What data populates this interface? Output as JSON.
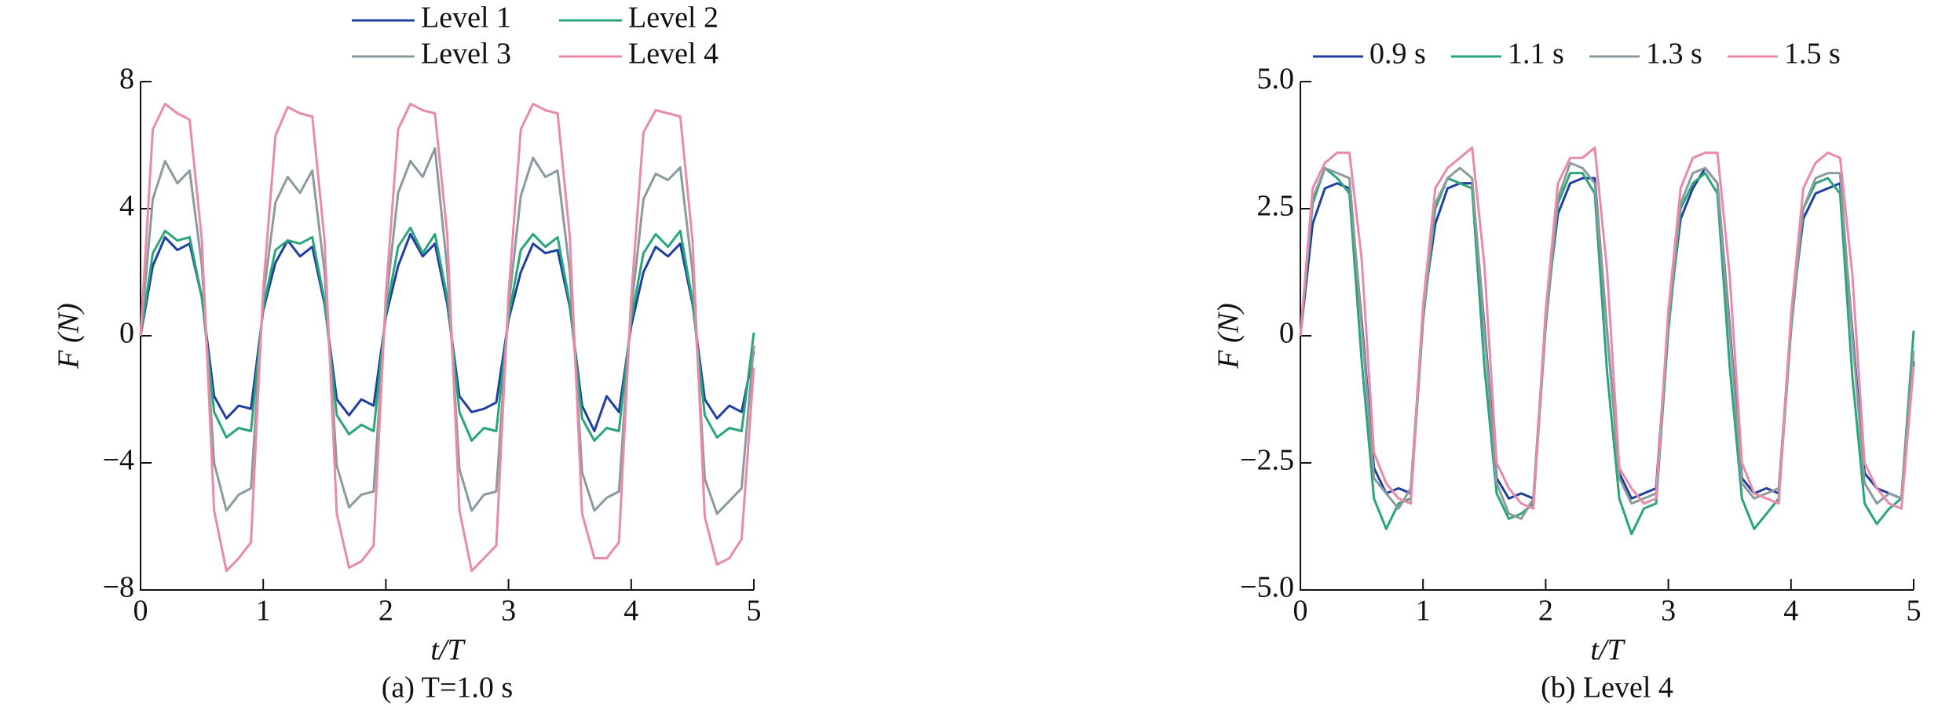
{
  "chart_data": [
    {
      "type": "line",
      "caption": "(a) T=1.0 s",
      "xlabel": "t/T",
      "ylabel": "F (N)",
      "xlim": [
        0,
        5
      ],
      "xticks": [
        0,
        1,
        2,
        3,
        4,
        5
      ],
      "ylim": [
        -8,
        8
      ],
      "yticks": [
        {
          "value": -8,
          "label": "−8"
        },
        {
          "value": -4,
          "label": "−4"
        },
        0,
        4,
        8
      ],
      "legend_columns": 2,
      "x": [
        0,
        0.1,
        0.2,
        0.3,
        0.4,
        0.5,
        0.6,
        0.7,
        0.8,
        0.9,
        1,
        1.1,
        1.2,
        1.3,
        1.4,
        1.5,
        1.6,
        1.7,
        1.8,
        1.9,
        2,
        2.1,
        2.2,
        2.3,
        2.4,
        2.5,
        2.6,
        2.7,
        2.8,
        2.9,
        3,
        3.1,
        3.2,
        3.3,
        3.4,
        3.5,
        3.6,
        3.7,
        3.8,
        3.9,
        4,
        4.1,
        4.2,
        4.3,
        4.4,
        4.5,
        4.6,
        4.7,
        4.8,
        4.9,
        5
      ],
      "series": [
        {
          "name": "Level 1",
          "color": "#1f3fa0",
          "values": [
            0,
            2.2,
            3.1,
            2.7,
            2.9,
            1.2,
            -1.9,
            -2.6,
            -2.2,
            -2.3,
            0.8,
            2.3,
            3.0,
            2.5,
            2.8,
            1.0,
            -2.0,
            -2.5,
            -2.0,
            -2.2,
            0.6,
            2.2,
            3.2,
            2.5,
            2.9,
            1.0,
            -1.9,
            -2.4,
            -2.3,
            -2.1,
            0.5,
            2.0,
            2.9,
            2.6,
            2.7,
            0.9,
            -2.2,
            -3.0,
            -1.9,
            -2.4,
            0.3,
            2.0,
            2.8,
            2.5,
            2.9,
            1.0,
            -2.0,
            -2.6,
            -2.2,
            -2.4,
            -0.5
          ]
        },
        {
          "name": "Level 2",
          "color": "#2aa57a",
          "values": [
            0,
            2.6,
            3.3,
            3.0,
            3.1,
            1.2,
            -2.4,
            -3.2,
            -2.9,
            -3.0,
            0.9,
            2.7,
            3.0,
            2.9,
            3.1,
            1.1,
            -2.5,
            -3.1,
            -2.8,
            -3.0,
            0.7,
            2.8,
            3.4,
            2.6,
            3.2,
            1.2,
            -2.4,
            -3.3,
            -2.9,
            -3.0,
            0.6,
            2.7,
            3.2,
            2.8,
            3.1,
            1.0,
            -2.6,
            -3.3,
            -2.9,
            -3.0,
            0.5,
            2.6,
            3.2,
            2.8,
            3.3,
            1.1,
            -2.5,
            -3.2,
            -2.9,
            -3.0,
            0.1
          ]
        },
        {
          "name": "Level 3",
          "color": "#8a9a9e",
          "values": [
            0,
            4.3,
            5.5,
            4.8,
            5.2,
            2.2,
            -4.0,
            -5.5,
            -5.0,
            -4.8,
            1.2,
            4.2,
            5.0,
            4.5,
            5.2,
            2.0,
            -4.1,
            -5.4,
            -5.0,
            -4.9,
            1.0,
            4.5,
            5.5,
            5.0,
            5.9,
            2.1,
            -4.2,
            -5.5,
            -5.0,
            -4.9,
            0.9,
            4.4,
            5.6,
            5.0,
            5.2,
            2.0,
            -4.3,
            -5.5,
            -5.1,
            -4.9,
            0.8,
            4.3,
            5.1,
            4.9,
            5.3,
            2.0,
            -4.5,
            -5.6,
            -5.2,
            -4.8,
            -0.3
          ]
        },
        {
          "name": "Level 4",
          "color": "#e88aa8",
          "values": [
            0,
            6.5,
            7.3,
            7.0,
            6.8,
            3.0,
            -5.5,
            -7.4,
            -7.0,
            -6.5,
            1.5,
            6.3,
            7.2,
            7.0,
            6.9,
            3.0,
            -5.6,
            -7.3,
            -7.1,
            -6.6,
            1.3,
            6.5,
            7.3,
            7.1,
            7.0,
            3.2,
            -5.5,
            -7.4,
            -7.0,
            -6.6,
            1.3,
            6.5,
            7.3,
            7.1,
            7.0,
            3.1,
            -5.6,
            -7.0,
            -7.0,
            -6.5,
            1.2,
            6.4,
            7.1,
            7.0,
            6.9,
            3.0,
            -5.7,
            -7.2,
            -7.0,
            -6.4,
            -1.0
          ]
        }
      ]
    },
    {
      "type": "line",
      "caption": "(b) Level 4",
      "xlabel": "t/T",
      "ylabel": "F (N)",
      "xlim": [
        0,
        5
      ],
      "xticks": [
        0,
        1,
        2,
        3,
        4,
        5
      ],
      "ylim": [
        -5,
        5
      ],
      "yticks": [
        {
          "value": -5,
          "label": "−5.0"
        },
        {
          "value": -2.5,
          "label": "−2.5"
        },
        0,
        2.5,
        {
          "value": 5,
          "label": "5.0"
        }
      ],
      "legend_columns": 4,
      "x": [
        0,
        0.1,
        0.2,
        0.3,
        0.4,
        0.5,
        0.6,
        0.7,
        0.8,
        0.9,
        1,
        1.1,
        1.2,
        1.3,
        1.4,
        1.5,
        1.6,
        1.7,
        1.8,
        1.9,
        2,
        2.1,
        2.2,
        2.3,
        2.4,
        2.5,
        2.6,
        2.7,
        2.8,
        2.9,
        3,
        3.1,
        3.2,
        3.3,
        3.4,
        3.5,
        3.6,
        3.7,
        3.8,
        3.9,
        4,
        4.1,
        4.2,
        4.3,
        4.4,
        4.5,
        4.6,
        4.7,
        4.8,
        4.9,
        5
      ],
      "series": [
        {
          "name": "0.9 s",
          "color": "#1f3fa0",
          "values": [
            0,
            2.2,
            2.9,
            3.0,
            2.9,
            0.3,
            -2.6,
            -3.1,
            -3.0,
            -3.1,
            0.5,
            2.2,
            2.9,
            3.0,
            3.0,
            0.2,
            -2.8,
            -3.2,
            -3.1,
            -3.2,
            0.4,
            2.4,
            3.0,
            3.1,
            3.1,
            0.1,
            -2.7,
            -3.2,
            -3.1,
            -3.0,
            0.3,
            2.3,
            2.9,
            3.3,
            3.0,
            0.2,
            -2.8,
            -3.1,
            -3.0,
            -3.1,
            0.3,
            2.3,
            2.8,
            2.9,
            3.0,
            0.1,
            -2.7,
            -3.0,
            -3.1,
            -3.2,
            -0.5
          ]
        },
        {
          "name": "1.1 s",
          "color": "#2aa57a",
          "values": [
            0,
            2.6,
            3.3,
            3.1,
            2.8,
            -0.5,
            -3.2,
            -3.8,
            -3.3,
            -3.2,
            0.3,
            2.5,
            3.1,
            3.0,
            2.9,
            -0.6,
            -3.1,
            -3.6,
            -3.5,
            -3.3,
            0.2,
            2.6,
            3.2,
            3.2,
            2.8,
            -0.7,
            -3.2,
            -3.9,
            -3.4,
            -3.3,
            0.1,
            2.5,
            3.0,
            3.2,
            2.8,
            -0.6,
            -3.2,
            -3.8,
            -3.5,
            -3.2,
            0.1,
            2.5,
            3.0,
            3.1,
            2.8,
            -0.8,
            -3.3,
            -3.7,
            -3.4,
            -3.2,
            0.1
          ]
        },
        {
          "name": "1.3 s",
          "color": "#8a9a9e",
          "values": [
            0,
            2.7,
            3.3,
            3.2,
            3.1,
            0.2,
            -2.8,
            -3.1,
            -3.4,
            -3.0,
            0.4,
            2.6,
            3.1,
            3.3,
            3.1,
            0.1,
            -2.9,
            -3.5,
            -3.6,
            -3.2,
            0.3,
            2.7,
            3.4,
            3.3,
            3.0,
            0.1,
            -2.8,
            -3.3,
            -3.2,
            -3.1,
            0.3,
            2.6,
            3.2,
            3.3,
            3.0,
            0.1,
            -2.9,
            -3.2,
            -3.1,
            -3.0,
            0.2,
            2.5,
            3.1,
            3.2,
            3.2,
            0.0,
            -2.9,
            -3.3,
            -3.1,
            -3.2,
            -0.3
          ]
        },
        {
          "name": "1.5 s",
          "color": "#e88aa8",
          "values": [
            0,
            2.9,
            3.4,
            3.6,
            3.6,
            1.5,
            -2.3,
            -2.9,
            -3.2,
            -3.3,
            0.6,
            2.9,
            3.3,
            3.5,
            3.7,
            1.4,
            -2.5,
            -3.0,
            -3.3,
            -3.4,
            0.5,
            3.0,
            3.5,
            3.5,
            3.7,
            1.3,
            -2.6,
            -3.0,
            -3.3,
            -3.2,
            0.5,
            2.9,
            3.5,
            3.6,
            3.6,
            1.2,
            -2.5,
            -3.1,
            -3.2,
            -3.3,
            0.4,
            2.9,
            3.4,
            3.6,
            3.5,
            1.2,
            -2.5,
            -3.0,
            -3.3,
            -3.4,
            -0.6
          ]
        }
      ]
    }
  ]
}
